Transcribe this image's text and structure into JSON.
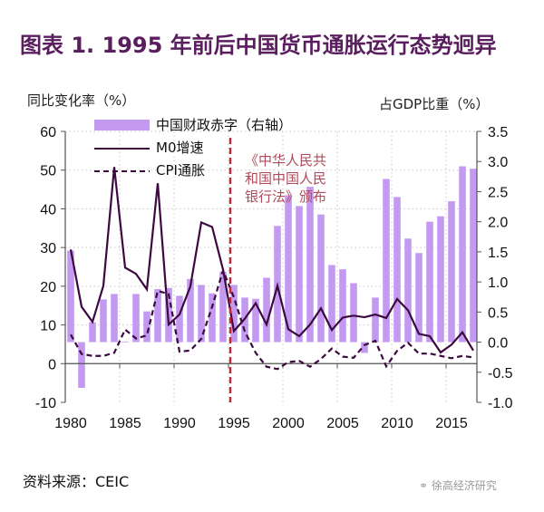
{
  "title": "图表  1. 1995 年前后中国货币通胀运行态势迥异",
  "source": "资料来源：CEIC",
  "watermark": "徐高经济研究",
  "colors": {
    "title": "#5a1e5e",
    "bar": "#c49af0",
    "m0": "#3d0a40",
    "cpi": "#3d0a40",
    "marker": "#c0283a",
    "annotation": "#b04a5a"
  },
  "chart_data": {
    "type": "bar+line",
    "title": "1995 年前后中国货币通胀运行态势迥异",
    "ylabel_left": "同比变化率（%）",
    "ylabel_right": "占GDP比重（%）",
    "ylim_left": [
      -10,
      60
    ],
    "ylim_right": [
      -1.0,
      3.5
    ],
    "yticks_left": [
      "60",
      "50",
      "40",
      "30",
      "20",
      "10",
      "0",
      "-10"
    ],
    "yticks_left_values": [
      60,
      50,
      40,
      30,
      20,
      10,
      0,
      -10
    ],
    "yticks_right": [
      "3.5",
      "3.0",
      "2.5",
      "2.0",
      "1.5",
      "1.0",
      "0.5",
      "0.0",
      "-0.5",
      "-1.0"
    ],
    "yticks_right_values": [
      3.5,
      3.0,
      2.5,
      2.0,
      1.5,
      1.0,
      0.5,
      0.0,
      -0.5,
      -1.0
    ],
    "xticks": [
      "1980",
      "1985",
      "1990",
      "1995",
      "2000",
      "2005",
      "2010",
      "2015"
    ],
    "xticks_values": [
      1980,
      1985,
      1990,
      1995,
      2000,
      2005,
      2010,
      2015
    ],
    "grid": true,
    "legend_position": "top-left",
    "x": [
      1980,
      1981,
      1982,
      1983,
      1984,
      1985,
      1986,
      1987,
      1988,
      1989,
      1990,
      1991,
      1992,
      1993,
      1994,
      1995,
      1996,
      1997,
      1998,
      1999,
      2000,
      2001,
      2002,
      2003,
      2004,
      2005,
      2006,
      2007,
      2008,
      2009,
      2010,
      2011,
      2012,
      2013,
      2014,
      2015,
      2016,
      2017
    ],
    "series": [
      {
        "name": "中国财政赤字（右轴）",
        "type": "bar",
        "axis": "right",
        "values": [
          1.52,
          -0.76,
          0.33,
          0.71,
          0.8,
          0.01,
          0.8,
          0.51,
          0.88,
          0.9,
          0.77,
          1.05,
          0.95,
          0.81,
          1.17,
          0.95,
          0.74,
          0.72,
          1.07,
          1.93,
          2.44,
          2.26,
          2.58,
          2.12,
          1.28,
          1.21,
          0.98,
          -0.18,
          0.74,
          2.71,
          2.41,
          1.72,
          1.48,
          2.0,
          2.09,
          2.34,
          2.92,
          2.88
        ]
      },
      {
        "name": "M0增速",
        "type": "line",
        "axis": "left",
        "style": "solid",
        "values": [
          29.5,
          14.7,
          10.8,
          20.1,
          50.8,
          24.8,
          23.2,
          19.2,
          46.6,
          10.1,
          12.7,
          20.0,
          36.5,
          35.3,
          24.3,
          8.4,
          11.6,
          15.6,
          10.1,
          20.1,
          8.9,
          7.1,
          10.1,
          14.3,
          8.7,
          11.9,
          12.4,
          12.0,
          12.7,
          11.8,
          16.7,
          13.8,
          7.7,
          7.1,
          2.9,
          4.9,
          8.1,
          3.4
        ]
      },
      {
        "name": "CPI通胀",
        "type": "line",
        "axis": "left",
        "style": "dashed",
        "values": [
          7.5,
          2.5,
          2.0,
          2.0,
          2.8,
          8.8,
          6.5,
          7.3,
          18.8,
          18.0,
          3.1,
          3.4,
          6.4,
          14.7,
          24.1,
          17.1,
          8.3,
          2.8,
          -0.8,
          -1.4,
          0.4,
          0.7,
          -0.8,
          1.2,
          3.9,
          1.8,
          1.5,
          4.8,
          5.9,
          -0.7,
          3.3,
          5.4,
          2.6,
          2.6,
          2.0,
          1.4,
          2.0,
          1.6
        ]
      }
    ],
    "annotation": {
      "year": 1995,
      "lines": [
        "《中华人民共",
        "和国中国人民",
        "银行法》颁布"
      ]
    }
  }
}
